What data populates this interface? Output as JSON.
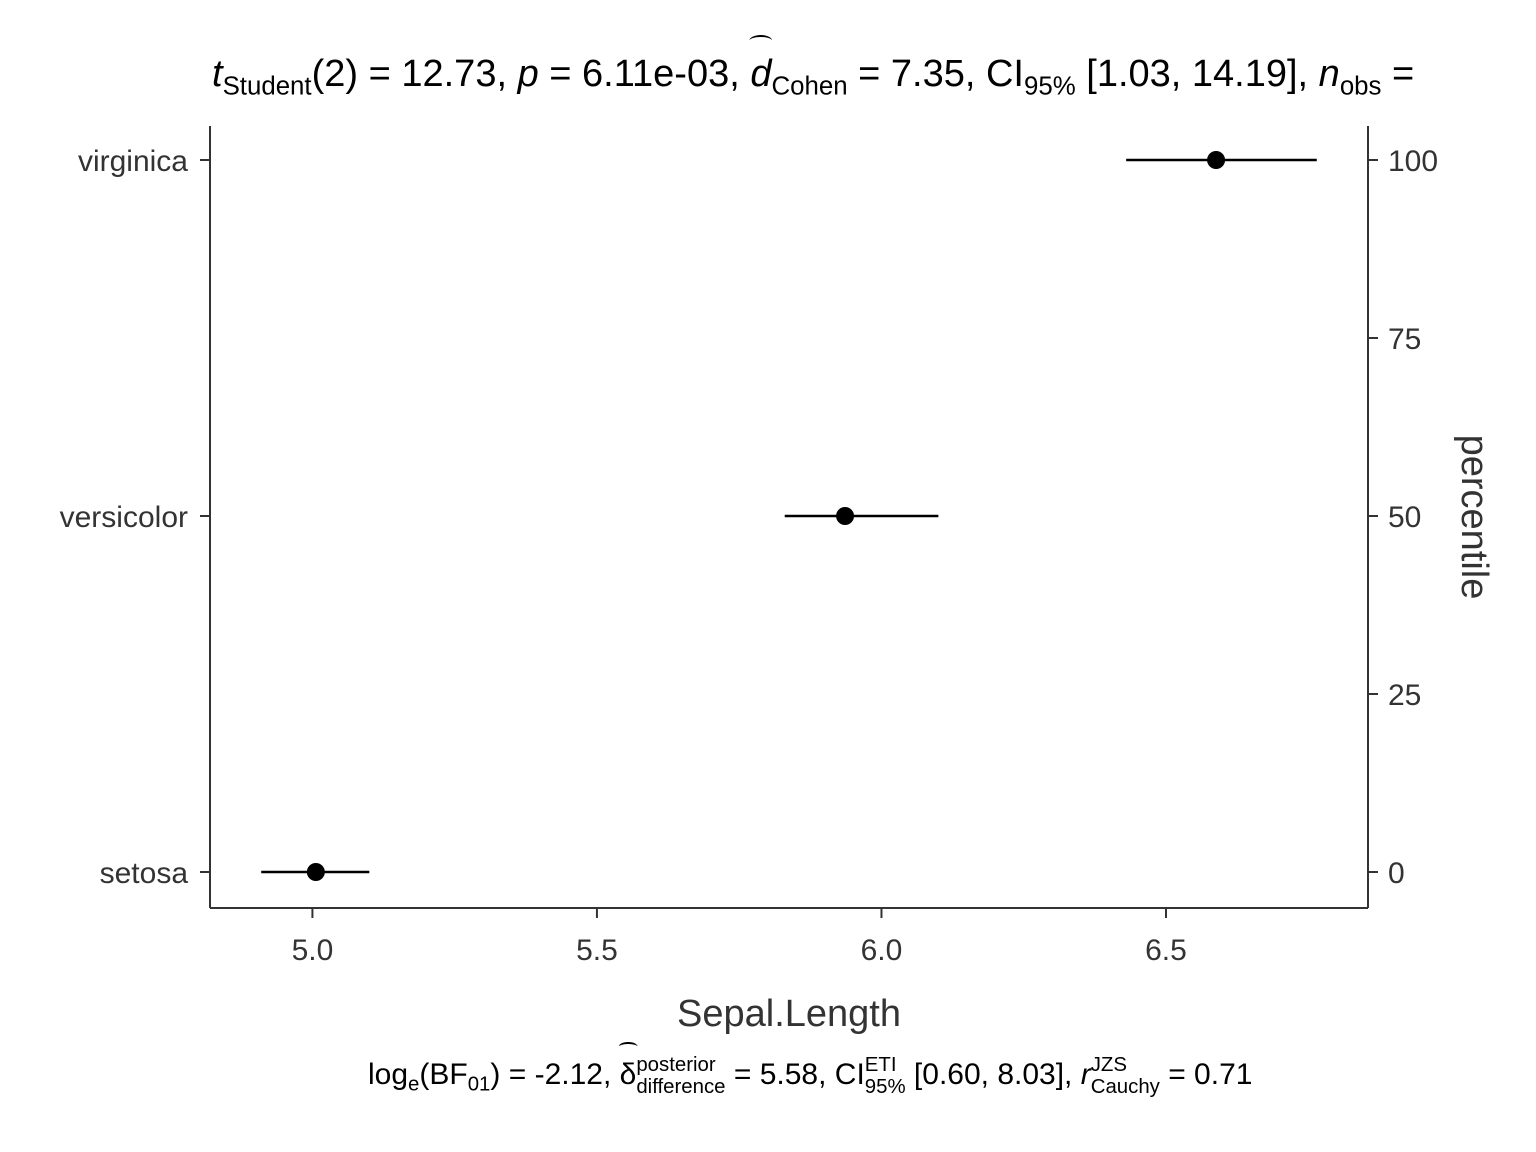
{
  "chart_data": {
    "type": "scatter",
    "title": "",
    "xlabel": "Sepal.Length",
    "ylabel_right": "percentile",
    "xlim": [
      4.82,
      6.855
    ],
    "x_ticks": [
      5.0,
      5.5,
      6.0,
      6.5
    ],
    "x_tick_labels": [
      "5.0",
      "5.5",
      "6.0",
      "6.5"
    ],
    "categories": [
      "setosa",
      "versicolor",
      "virginica"
    ],
    "right_ticks": [
      0,
      25,
      50,
      75,
      100
    ],
    "right_tick_labels": [
      "0",
      "25",
      "50",
      "75",
      "100"
    ],
    "points": [
      {
        "category": "setosa",
        "mean": 5.006,
        "ci_low": 4.91,
        "ci_high": 5.1,
        "percentile": 0
      },
      {
        "category": "versicolor",
        "mean": 5.936,
        "ci_low": 5.83,
        "ci_high": 6.1,
        "percentile": 50
      },
      {
        "category": "virginica",
        "mean": 6.588,
        "ci_low": 6.43,
        "ci_high": 6.765,
        "percentile": 100
      }
    ],
    "grid": false,
    "colors": {
      "point": "#000000",
      "axis": "#333333",
      "text": "#333333"
    }
  },
  "stats_top": {
    "t_symbol": "t",
    "t_sub": "Student",
    "t_rest": "(2) = 12.73, ",
    "p_symbol": "p",
    "p_rest": " = 6.11e-03, ",
    "d_symbol": "d",
    "d_sub": "Cohen",
    "d_rest": " = 7.35, CI",
    "ci_sub": "95%",
    "ci_rest": " [1.03, 14.19], ",
    "n_symbol": "n",
    "n_sub": "obs",
    "n_rest": " ="
  },
  "stats_bottom": {
    "log_text": "log",
    "log_sub": "e",
    "bf_open": "(BF",
    "bf_sub": "01",
    "bf_rest": ") = -2.12, ",
    "delta_symbol": "δ",
    "delta_sup": "posterior",
    "delta_sub": "difference",
    "delta_rest": " = 5.58, CI",
    "ci_sup": "ETI",
    "ci_sub": "95%",
    "ci_rest": " [0.60, 8.03], ",
    "r_symbol": "r",
    "r_sup": "JZS",
    "r_sub": "Cauchy",
    "r_rest": " = 0.71"
  }
}
